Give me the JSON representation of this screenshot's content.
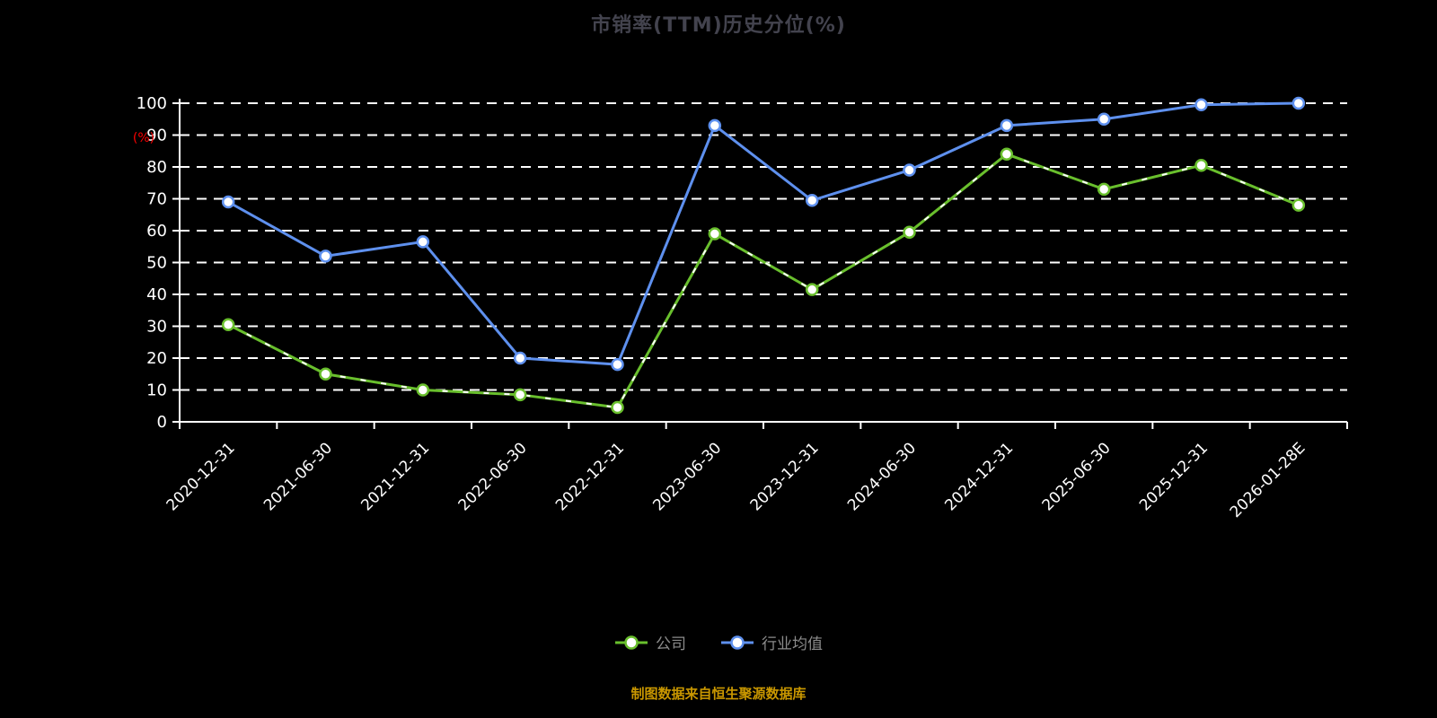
{
  "header": {
    "title": "市销率(TTM)历史分位(%)"
  },
  "footer": {
    "text": "制图数据来自恒生聚源数据库"
  },
  "legend": [
    {
      "label": "公司",
      "color": "#69bf2d"
    },
    {
      "label": "行业均值",
      "color": "#5e90ee"
    }
  ],
  "colors": {
    "background": "#000000",
    "title": "#43434e",
    "axis": "#ffffff",
    "gridline": "#ffffff",
    "tick_label": "#ffffff",
    "ylabel": "#ff0000",
    "legend_text": "#8c8c8c",
    "footer_text": "#c99700",
    "company": "#69bf2d",
    "industry": "#5e90ee",
    "marker_fill": "#ffffff"
  },
  "chart_data": {
    "type": "line",
    "title": "市销率(TTM)历史分位(%)",
    "xlabel": "",
    "ylabel": "(%)",
    "ylim": [
      0,
      100
    ],
    "yticks": [
      0,
      10,
      20,
      30,
      40,
      50,
      60,
      70,
      80,
      90,
      100
    ],
    "grid": true,
    "grid_style": "dashed",
    "legend_position": "bottom",
    "categories": [
      "2020-12-31",
      "2021-06-30",
      "2021-12-31",
      "2022-06-30",
      "2022-12-31",
      "2023-06-30",
      "2023-12-31",
      "2024-06-30",
      "2024-12-31",
      "2025-06-30",
      "2025-12-31",
      "2026-01-28E"
    ],
    "series": [
      {
        "name": "公司",
        "color": "#69bf2d",
        "dash_overlay": true,
        "values": [
          30.5,
          15,
          10,
          8.5,
          4.5,
          59,
          41.5,
          59.5,
          84,
          73,
          80.5,
          68
        ]
      },
      {
        "name": "行业均值",
        "color": "#5e90ee",
        "dash_overlay": false,
        "values": [
          69,
          52,
          56.5,
          20,
          18,
          93,
          69.5,
          79,
          93,
          95,
          99.5,
          100
        ]
      }
    ]
  }
}
